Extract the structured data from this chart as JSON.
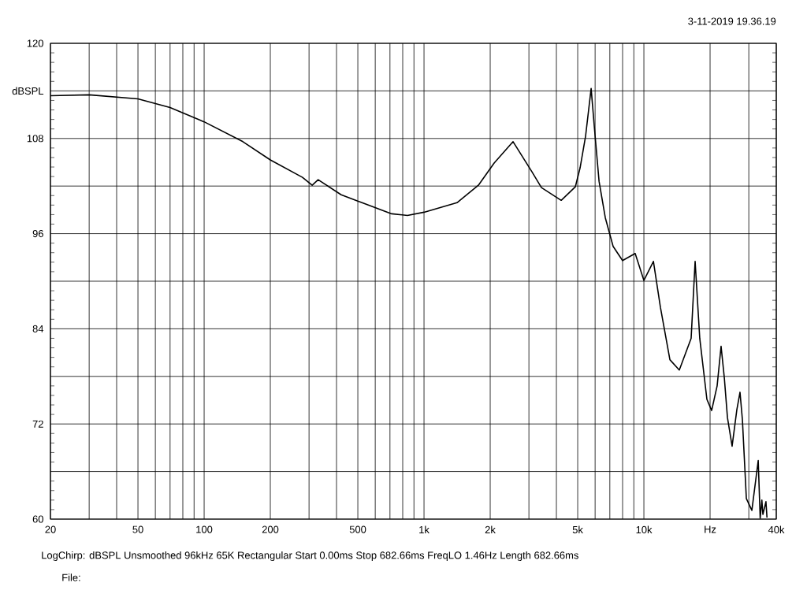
{
  "chart_data": {
    "type": "line",
    "annotations": [
      "3-11-2019 19.36.19",
      "LogChirp:  dBSPL  Unsmoothed  96kHz  65K  Rectangular  Start 0.00ms  Stop 682.66ms  FreqLO 1.46Hz  Length 682.66ms",
      "File:"
    ],
    "log": "x",
    "grid": true,
    "xlim": [
      20,
      40000
    ],
    "ylim": [
      60,
      120
    ],
    "xticks": [
      20,
      {
        "value": 30,
        "label": null
      },
      {
        "value": 40,
        "label": null
      },
      50,
      {
        "value": 60,
        "label": null
      },
      {
        "value": 70,
        "label": null
      },
      {
        "value": 80,
        "label": null
      },
      {
        "value": 90,
        "label": null
      },
      100,
      200,
      {
        "value": 300,
        "label": null
      },
      {
        "value": 400,
        "label": null
      },
      500,
      {
        "value": 600,
        "label": null
      },
      {
        "value": 700,
        "label": null
      },
      {
        "value": 800,
        "label": null
      },
      {
        "value": 900,
        "label": null
      },
      {
        "value": 1000,
        "label": "1k"
      },
      {
        "value": 2000,
        "label": "2k"
      },
      {
        "value": 3000,
        "label": null
      },
      {
        "value": 4000,
        "label": null
      },
      {
        "value": 5000,
        "label": "5k"
      },
      {
        "value": 6000,
        "label": null
      },
      {
        "value": 7000,
        "label": null
      },
      {
        "value": 8000,
        "label": null
      },
      {
        "value": 9000,
        "label": null
      },
      {
        "value": 10000,
        "label": "10k"
      },
      {
        "value": 20000,
        "label": "Hz"
      },
      {
        "value": 30000,
        "label": null
      },
      {
        "value": 40000,
        "label": "40k"
      }
    ],
    "yticks": [
      60,
      {
        "value": 66,
        "label": null
      },
      72,
      {
        "value": 78,
        "label": null
      },
      84,
      {
        "value": 90,
        "label": null
      },
      96,
      {
        "value": 102,
        "label": null
      },
      108,
      {
        "value": 114,
        "label": "dBSPL"
      },
      120
    ],
    "x": [
      20,
      30,
      50,
      70,
      100,
      150,
      200,
      280,
      310,
      330,
      420,
      534,
      713,
      841,
      1000,
      1413,
      1767,
      2084,
      2541,
      3097,
      3420,
      4206,
      4877,
      5127,
      5430,
      5755,
      6000,
      6253,
      6676,
      7245,
      7998,
      9127,
      10000,
      11050,
      11890,
      13130,
      14490,
      16400,
      17100,
      17950,
      19350,
      20330,
      21530,
      22440,
      23220,
      23990,
      25190,
      26470,
      27360,
      28060,
      29240,
      30980,
      33110,
      33800,
      34400,
      34770,
      35900,
      36300
    ],
    "series": [
      {
        "color": "#000000",
        "values": [
          113.4,
          113.5,
          113.0,
          111.9,
          110.1,
          107.6,
          105.3,
          103.1,
          102.1,
          102.8,
          100.9,
          99.8,
          98.5,
          98.3,
          98.7,
          99.9,
          102.1,
          104.9,
          107.6,
          103.8,
          101.8,
          100.2,
          101.9,
          104.3,
          108.3,
          114.3,
          108.3,
          102.6,
          98.0,
          94.4,
          92.6,
          93.5,
          90.1,
          92.5,
          86.7,
          80.1,
          78.8,
          82.8,
          92.5,
          82.8,
          75.1,
          73.7,
          76.8,
          81.8,
          77.8,
          72.8,
          69.2,
          73.8,
          76.0,
          72.5,
          62.6,
          61.1,
          67.4,
          60.1,
          62.4,
          60.6,
          62.2,
          60.2
        ]
      }
    ]
  }
}
